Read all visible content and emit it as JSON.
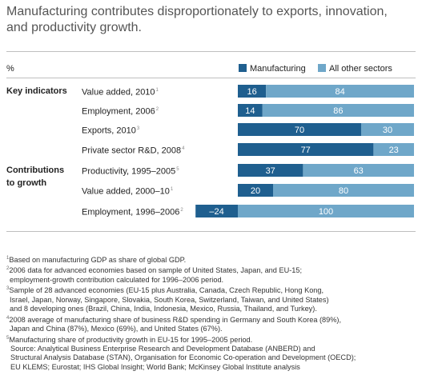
{
  "title": "Manufacturing contributes disproportionately to exports, innovation, and productivity growth.",
  "unit_label": "%",
  "colors": {
    "manufacturing": "#1f5f8f",
    "other": "#6fa7c9",
    "text_on_bar": "#ffffff"
  },
  "legend": {
    "manufacturing": "Manufacturing",
    "other": "All other sectors"
  },
  "groups": {
    "key": "Key indicators",
    "contrib_line1": "Contributions",
    "contrib_line2": "to growth"
  },
  "rows": [
    {
      "label": "Value added, 2010",
      "note": "1"
    },
    {
      "label": "Employment, 2006",
      "note": "2"
    },
    {
      "label": "Exports, 2010",
      "note": "3"
    },
    {
      "label": "Private sector R&D, 2008",
      "note": "4"
    },
    {
      "label": "Productivity, 1995–2005",
      "note": "5"
    },
    {
      "label": "Value added, 2000–10",
      "note": "1"
    },
    {
      "label": "Employment, 1996–2006",
      "note": "2"
    }
  ],
  "chart_data": {
    "type": "bar",
    "orientation": "horizontal",
    "stacked": true,
    "unit": "%",
    "categories": [
      "Value added, 2010",
      "Employment, 2006",
      "Exports, 2010",
      "Private sector R&D, 2008",
      "Productivity, 1995–2005",
      "Value added, 2000–10",
      "Employment, 1996–2006"
    ],
    "series": [
      {
        "name": "Manufacturing",
        "values": [
          16,
          14,
          70,
          77,
          37,
          20,
          -24
        ],
        "labels": [
          "16",
          "14",
          "70",
          "77",
          "37",
          "20",
          "–24"
        ]
      },
      {
        "name": "All other sectors",
        "values": [
          84,
          86,
          30,
          23,
          63,
          80,
          100
        ],
        "labels": [
          "84",
          "86",
          "30",
          "23",
          "63",
          "80",
          "100"
        ]
      }
    ],
    "xlim": [
      -24,
      100
    ]
  },
  "footnotes": [
    {
      "num": "1",
      "text": "Based on manufacturing GDP as share of global GDP."
    },
    {
      "num": "2",
      "text": "2006 data for advanced economies based on sample of United States, Japan, and EU-15;"
    },
    {
      "num": "",
      "text": "employment-growth contribution calculated for 1996–2006 period."
    },
    {
      "num": "3",
      "text": "Sample of 28 advanced economies (EU-15 plus Australia, Canada, Czech Republic, Hong Kong,"
    },
    {
      "num": "",
      "text": "Israel, Japan, Norway, Singapore, Slovakia, South Korea, Switzerland, Taiwan, and United States)"
    },
    {
      "num": "",
      "text": "and 8 developing ones (Brazil, China, India, Indonesia, Mexico, Russia, Thailand, and Turkey)."
    },
    {
      "num": "4",
      "text": "2008 average of manufacturing share of business R&D spending in Germany and South Korea (89%),"
    },
    {
      "num": "",
      "text": "Japan and China (87%), Mexico (69%), and United States (67%)."
    },
    {
      "num": "5",
      "text": "Manufacturing share of productivity growth in EU-15 for 1995–2005 period."
    }
  ],
  "source": [
    "Source: Analytical Business Enterprise Research and Development Database (ANBERD) and",
    "Structural Analysis Database (STAN), Organisation for Economic Co-operation and Development (OECD);",
    "EU KLEMS; Eurostat; IHS Global Insight; World Bank; McKinsey Global Institute analysis"
  ]
}
